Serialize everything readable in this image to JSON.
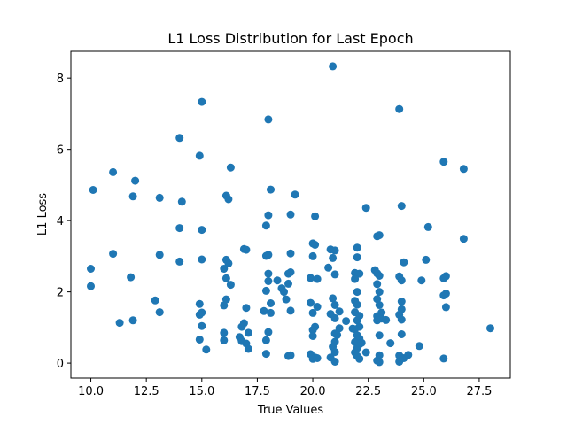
{
  "chart_data": {
    "type": "scatter",
    "title": "L1 Loss Distribution for Last Epoch",
    "xlabel": "True Values",
    "ylabel": "L1 Loss",
    "xlim": [
      9.1,
      28.9
    ],
    "ylim": [
      -0.42,
      8.75
    ],
    "xticks": [
      10.0,
      12.5,
      15.0,
      17.5,
      20.0,
      22.5,
      25.0,
      27.5
    ],
    "xtick_labels": [
      "10.0",
      "12.5",
      "15.0",
      "17.5",
      "20.0",
      "22.5",
      "25.0",
      "27.5"
    ],
    "yticks": [
      0,
      2,
      4,
      6,
      8
    ],
    "ytick_labels": [
      "0",
      "2",
      "4",
      "6",
      "8"
    ],
    "grid": false,
    "legend": "none",
    "color": "#1f77b4",
    "points": [
      [
        10.1,
        4.86
      ],
      [
        10.0,
        2.65
      ],
      [
        10.0,
        2.16
      ],
      [
        11.0,
        5.36
      ],
      [
        11.0,
        3.07
      ],
      [
        11.3,
        1.13
      ],
      [
        11.8,
        2.41
      ],
      [
        11.9,
        1.2
      ],
      [
        12.0,
        5.12
      ],
      [
        11.9,
        4.68
      ],
      [
        13.1,
        4.64
      ],
      [
        12.9,
        1.76
      ],
      [
        13.1,
        3.04
      ],
      [
        13.1,
        1.43
      ],
      [
        14.0,
        6.32
      ],
      [
        14.1,
        4.53
      ],
      [
        14.0,
        3.79
      ],
      [
        14.0,
        2.85
      ],
      [
        15.0,
        7.33
      ],
      [
        14.9,
        5.82
      ],
      [
        15.0,
        3.74
      ],
      [
        15.0,
        2.91
      ],
      [
        14.9,
        1.66
      ],
      [
        15.0,
        1.42
      ],
      [
        14.9,
        1.36
      ],
      [
        15.0,
        1.04
      ],
      [
        14.9,
        0.66
      ],
      [
        15.2,
        0.38
      ],
      [
        16.1,
        4.7
      ],
      [
        16.2,
        4.6
      ],
      [
        16.3,
        5.49
      ],
      [
        16.0,
        2.65
      ],
      [
        16.1,
        2.9
      ],
      [
        16.2,
        2.8
      ],
      [
        16.1,
        2.38
      ],
      [
        16.3,
        2.2
      ],
      [
        16.1,
        1.79
      ],
      [
        16.0,
        1.62
      ],
      [
        16.0,
        0.85
      ],
      [
        16.0,
        0.64
      ],
      [
        16.9,
        3.2
      ],
      [
        17.0,
        3.18
      ],
      [
        16.8,
        1.02
      ],
      [
        16.9,
        1.12
      ],
      [
        16.7,
        0.73
      ],
      [
        16.8,
        0.62
      ],
      [
        17.0,
        1.55
      ],
      [
        17.1,
        0.85
      ],
      [
        17.0,
        0.55
      ],
      [
        17.1,
        0.4
      ],
      [
        18.0,
        6.84
      ],
      [
        18.1,
        4.87
      ],
      [
        18.0,
        4.15
      ],
      [
        17.9,
        3.86
      ],
      [
        17.9,
        3.01
      ],
      [
        18.0,
        3.04
      ],
      [
        18.0,
        2.51
      ],
      [
        18.0,
        2.3
      ],
      [
        17.9,
        2.03
      ],
      [
        18.1,
        1.68
      ],
      [
        17.8,
        1.46
      ],
      [
        18.1,
        1.41
      ],
      [
        18.0,
        0.87
      ],
      [
        17.9,
        0.64
      ],
      [
        17.9,
        0.26
      ],
      [
        18.4,
        2.32
      ],
      [
        18.6,
        2.1
      ],
      [
        18.7,
        2.0
      ],
      [
        18.9,
        2.51
      ],
      [
        19.0,
        2.55
      ],
      [
        18.9,
        2.23
      ],
      [
        18.8,
        1.79
      ],
      [
        19.0,
        1.47
      ],
      [
        19.0,
        4.17
      ],
      [
        19.2,
        4.73
      ],
      [
        19.0,
        3.08
      ],
      [
        18.9,
        0.2
      ],
      [
        19.0,
        0.22
      ],
      [
        19.9,
        2.39
      ],
      [
        20.1,
        4.12
      ],
      [
        20.0,
        3.36
      ],
      [
        20.1,
        3.32
      ],
      [
        20.0,
        3.0
      ],
      [
        20.2,
        2.36
      ],
      [
        19.9,
        1.69
      ],
      [
        20.2,
        1.58
      ],
      [
        20.0,
        1.41
      ],
      [
        20.1,
        1.02
      ],
      [
        20.0,
        0.93
      ],
      [
        20.0,
        0.76
      ],
      [
        19.9,
        0.25
      ],
      [
        20.1,
        0.16
      ],
      [
        20.0,
        0.12
      ],
      [
        20.2,
        0.14
      ],
      [
        20.9,
        8.33
      ],
      [
        20.8,
        3.19
      ],
      [
        21.0,
        3.16
      ],
      [
        20.9,
        2.95
      ],
      [
        20.7,
        2.68
      ],
      [
        21.0,
        2.49
      ],
      [
        20.9,
        1.82
      ],
      [
        21.0,
        1.63
      ],
      [
        20.8,
        1.38
      ],
      [
        21.2,
        1.45
      ],
      [
        21.0,
        1.26
      ],
      [
        21.2,
        0.98
      ],
      [
        21.0,
        0.83
      ],
      [
        21.1,
        0.79
      ],
      [
        21.0,
        0.6
      ],
      [
        20.9,
        0.46
      ],
      [
        21.0,
        0.31
      ],
      [
        20.8,
        0.16
      ],
      [
        21.0,
        0.04
      ],
      [
        21.5,
        1.18
      ],
      [
        21.8,
        0.97
      ],
      [
        22.0,
        3.24
      ],
      [
        22.0,
        2.97
      ],
      [
        21.9,
        2.53
      ],
      [
        22.1,
        2.51
      ],
      [
        21.9,
        2.36
      ],
      [
        22.0,
        2.0
      ],
      [
        21.9,
        1.75
      ],
      [
        22.0,
        1.64
      ],
      [
        21.9,
        1.43
      ],
      [
        22.1,
        1.33
      ],
      [
        22.0,
        1.2
      ],
      [
        22.1,
        1.02
      ],
      [
        21.9,
        0.95
      ],
      [
        22.0,
        0.78
      ],
      [
        22.1,
        0.69
      ],
      [
        21.9,
        0.59
      ],
      [
        22.1,
        0.53
      ],
      [
        22.0,
        0.42
      ],
      [
        21.9,
        0.3
      ],
      [
        22.0,
        0.2
      ],
      [
        22.1,
        0.12
      ],
      [
        22.2,
        0.57
      ],
      [
        22.4,
        0.3
      ],
      [
        22.4,
        4.36
      ],
      [
        22.9,
        3.56
      ],
      [
        23.0,
        3.59
      ],
      [
        22.8,
        2.61
      ],
      [
        22.9,
        2.52
      ],
      [
        23.0,
        2.45
      ],
      [
        22.9,
        2.22
      ],
      [
        23.0,
        2.0
      ],
      [
        22.9,
        1.8
      ],
      [
        23.0,
        1.63
      ],
      [
        23.1,
        1.42
      ],
      [
        22.9,
        1.32
      ],
      [
        23.1,
        1.25
      ],
      [
        22.9,
        1.2
      ],
      [
        23.3,
        1.21
      ],
      [
        23.0,
        0.78
      ],
      [
        23.0,
        0.22
      ],
      [
        22.9,
        0.07
      ],
      [
        23.0,
        0.03
      ],
      [
        23.5,
        0.56
      ],
      [
        23.9,
        7.13
      ],
      [
        24.0,
        4.41
      ],
      [
        23.9,
        2.43
      ],
      [
        24.0,
        2.32
      ],
      [
        24.0,
        1.73
      ],
      [
        24.0,
        1.51
      ],
      [
        23.9,
        1.36
      ],
      [
        24.0,
        1.22
      ],
      [
        24.0,
        0.81
      ],
      [
        23.9,
        0.21
      ],
      [
        23.9,
        0.04
      ],
      [
        24.1,
        0.14
      ],
      [
        24.3,
        0.23
      ],
      [
        24.1,
        2.83
      ],
      [
        24.9,
        2.32
      ],
      [
        24.8,
        0.48
      ],
      [
        25.1,
        2.9
      ],
      [
        25.2,
        3.82
      ],
      [
        25.9,
        5.65
      ],
      [
        26.0,
        2.44
      ],
      [
        25.9,
        2.38
      ],
      [
        26.0,
        1.95
      ],
      [
        25.9,
        1.9
      ],
      [
        26.0,
        1.57
      ],
      [
        25.9,
        0.13
      ],
      [
        26.8,
        5.45
      ],
      [
        26.8,
        3.49
      ],
      [
        28.0,
        0.98
      ]
    ]
  }
}
